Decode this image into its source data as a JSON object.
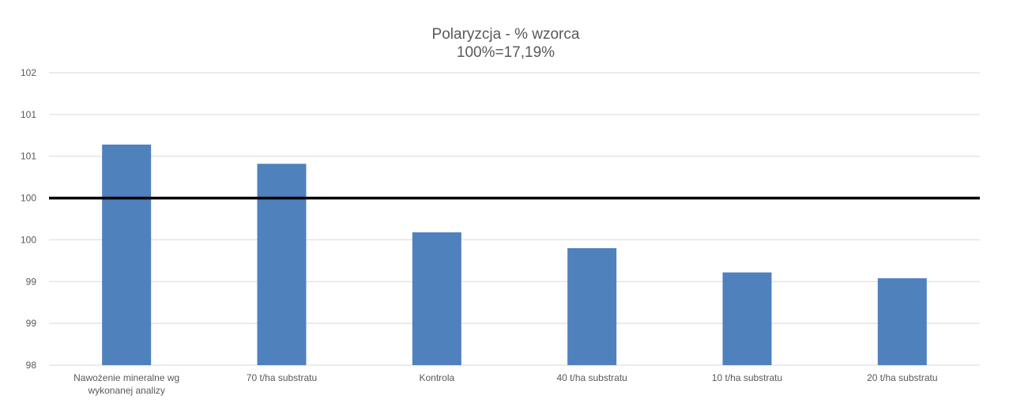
{
  "chart_data": {
    "type": "bar",
    "title": "Polaryzcja - % wzorca",
    "subtitle": "100%=17,19%",
    "categories": [
      [
        "Nawożenie mineralne wg",
        "wykonanej analizy"
      ],
      [
        "70 t/ha substratu"
      ],
      [
        "Kontrola"
      ],
      [
        "40 t/ha substratu"
      ],
      [
        "10 t/ha substratu"
      ],
      [
        "20 t/ha substratu"
      ]
    ],
    "values": [
      100.64,
      100.41,
      99.59,
      99.4,
      99.11,
      99.04
    ],
    "ylim": [
      98,
      101.5
    ],
    "yticks": [
      98,
      98.5,
      99,
      99.5,
      100,
      100.5,
      101,
      101.5
    ],
    "ytick_labels": [
      "98",
      "99",
      "99",
      "100",
      "100",
      "101",
      "101",
      "102"
    ],
    "reference_line": 100,
    "grid": true,
    "colors": {
      "bar": "#4f81bd",
      "reference": "#000000",
      "grid": "#d9d9d9",
      "text": "#595959"
    }
  }
}
